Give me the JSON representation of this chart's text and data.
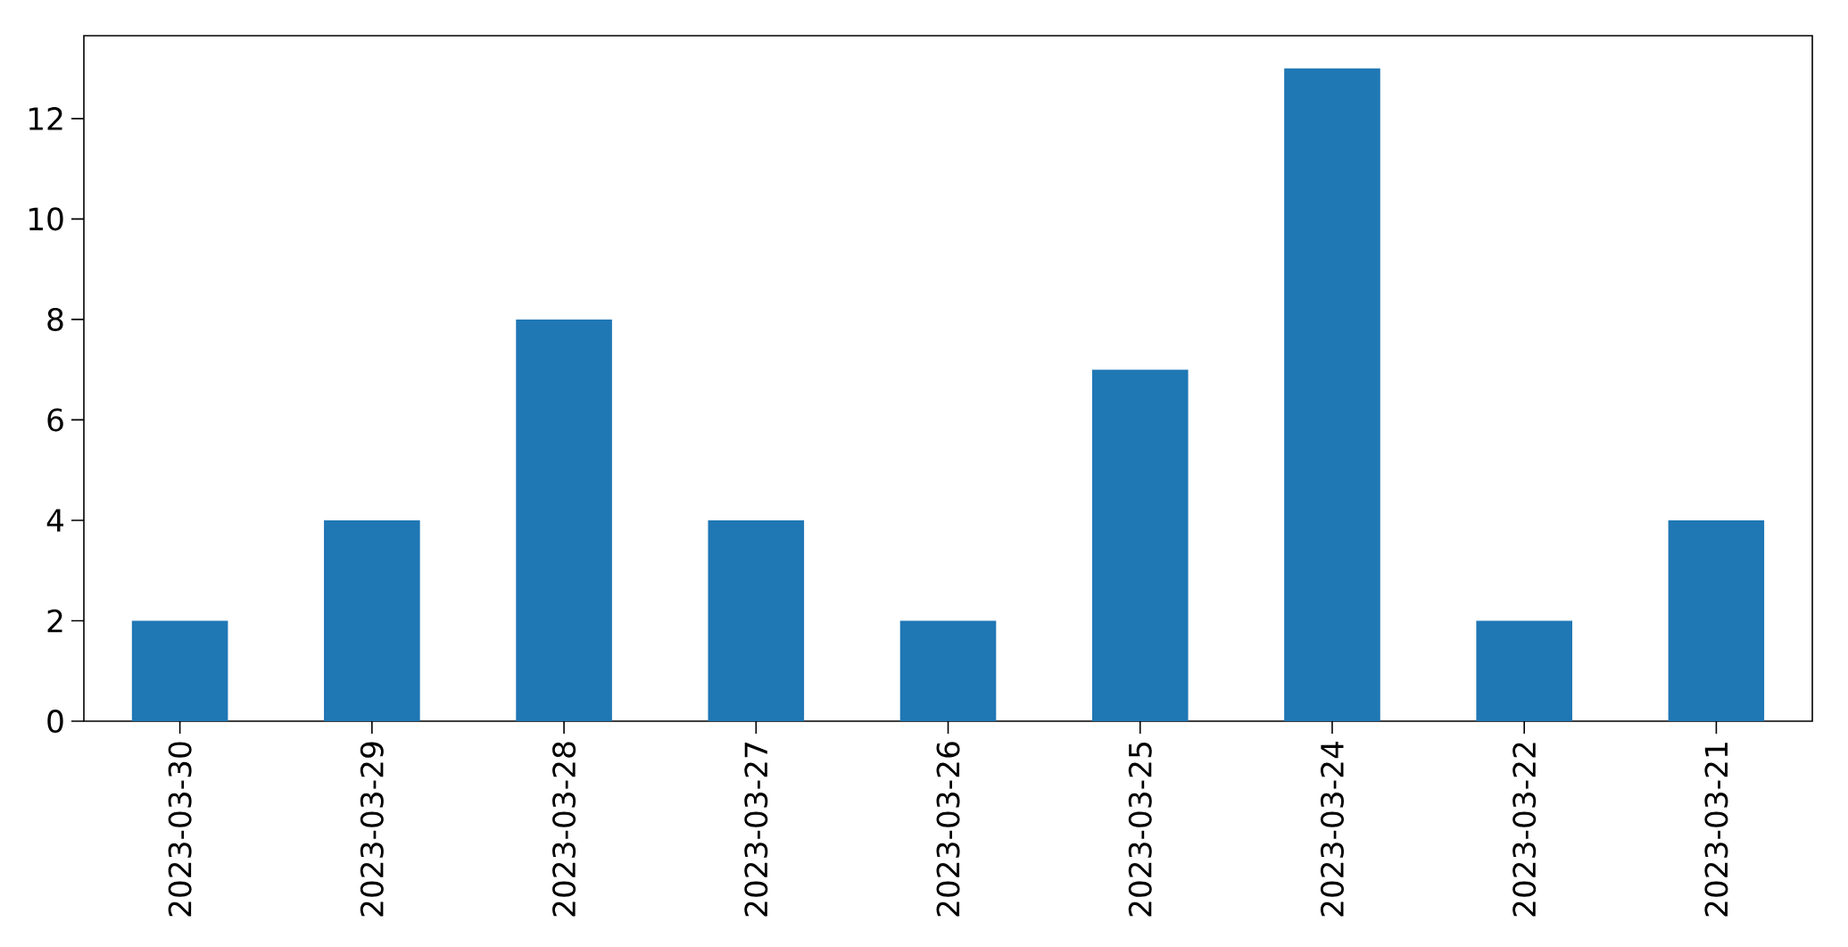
{
  "chart_data": {
    "type": "bar",
    "categories": [
      "2023-03-30",
      "2023-03-29",
      "2023-03-28",
      "2023-03-27",
      "2023-03-26",
      "2023-03-25",
      "2023-03-24",
      "2023-03-22",
      "2023-03-21"
    ],
    "values": [
      2,
      4,
      8,
      4,
      2,
      7,
      13,
      2,
      4
    ],
    "color": "#1f77b4",
    "ylim": [
      0,
      13.65
    ],
    "yticks": [
      0,
      2,
      4,
      6,
      8,
      10,
      12
    ]
  }
}
